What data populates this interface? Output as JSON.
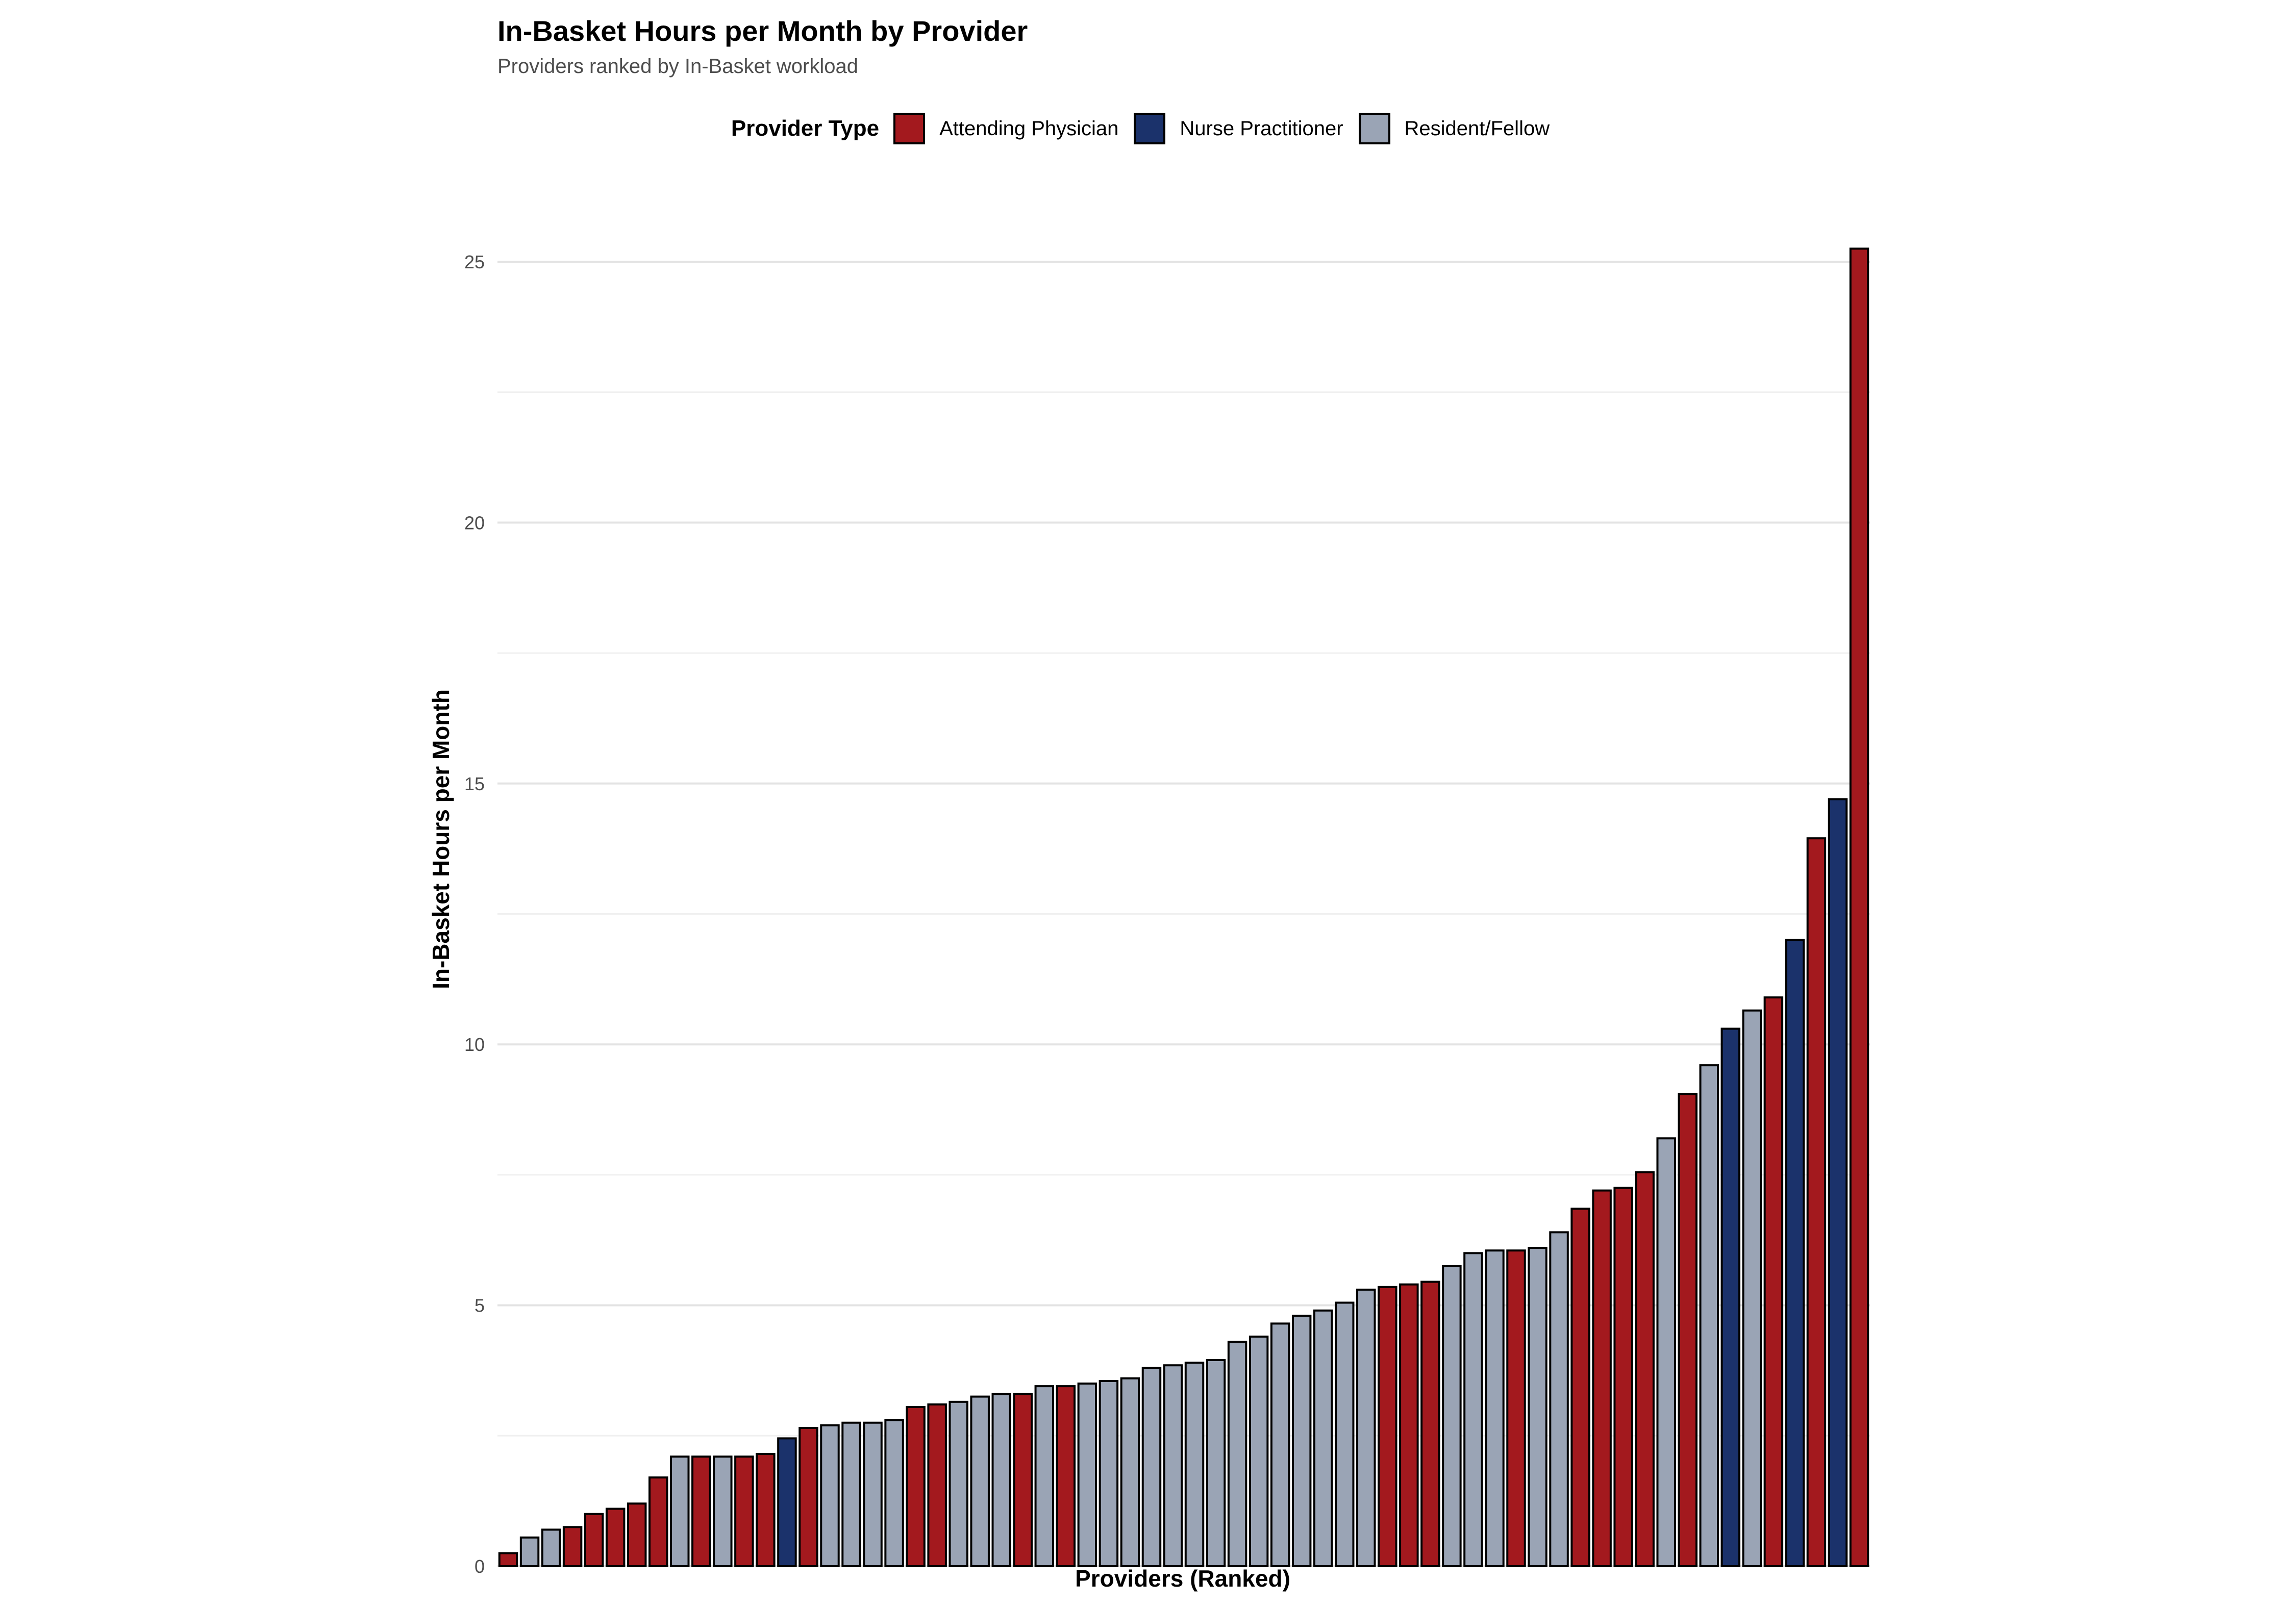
{
  "chart_data": {
    "type": "bar",
    "title": "In-Basket Hours per Month by Provider",
    "subtitle": "Providers ranked by In-Basket workload",
    "xlabel": "Providers (Ranked)",
    "ylabel": "In-Basket Hours per Month",
    "ylim": [
      0,
      25.3
    ],
    "yticks": [
      0,
      5,
      10,
      15,
      20,
      25
    ],
    "grid": true,
    "legend": {
      "title": "Provider Type",
      "placement": "top",
      "entries": [
        {
          "name": "Attending Physician",
          "color": "#A3191E"
        },
        {
          "name": "Nurse Practitioner",
          "color": "#1B326B"
        },
        {
          "name": "Resident/Fellow",
          "color": "#9AA4B5"
        }
      ]
    },
    "values": [
      0.25,
      0.55,
      0.7,
      0.75,
      1.0,
      1.1,
      1.2,
      1.7,
      2.1,
      2.1,
      2.1,
      2.1,
      2.15,
      2.45,
      2.65,
      2.7,
      2.75,
      2.75,
      2.8,
      3.05,
      3.1,
      3.15,
      3.25,
      3.3,
      3.3,
      3.45,
      3.45,
      3.5,
      3.55,
      3.6,
      3.8,
      3.85,
      3.9,
      3.95,
      4.3,
      4.4,
      4.65,
      4.8,
      4.9,
      5.05,
      5.3,
      5.35,
      5.4,
      5.45,
      5.75,
      6.0,
      6.05,
      6.05,
      6.1,
      6.4,
      6.85,
      7.2,
      7.25,
      7.55,
      8.2,
      9.05,
      9.6,
      10.3,
      10.65,
      10.9,
      12.0,
      13.95,
      14.7,
      25.25
    ],
    "types": [
      "Attending Physician",
      "Resident/Fellow",
      "Resident/Fellow",
      "Attending Physician",
      "Attending Physician",
      "Attending Physician",
      "Attending Physician",
      "Attending Physician",
      "Resident/Fellow",
      "Attending Physician",
      "Resident/Fellow",
      "Attending Physician",
      "Attending Physician",
      "Nurse Practitioner",
      "Attending Physician",
      "Resident/Fellow",
      "Resident/Fellow",
      "Resident/Fellow",
      "Resident/Fellow",
      "Attending Physician",
      "Attending Physician",
      "Resident/Fellow",
      "Resident/Fellow",
      "Resident/Fellow",
      "Attending Physician",
      "Resident/Fellow",
      "Attending Physician",
      "Resident/Fellow",
      "Resident/Fellow",
      "Resident/Fellow",
      "Resident/Fellow",
      "Resident/Fellow",
      "Resident/Fellow",
      "Resident/Fellow",
      "Resident/Fellow",
      "Resident/Fellow",
      "Resident/Fellow",
      "Resident/Fellow",
      "Resident/Fellow",
      "Resident/Fellow",
      "Resident/Fellow",
      "Attending Physician",
      "Attending Physician",
      "Attending Physician",
      "Resident/Fellow",
      "Resident/Fellow",
      "Resident/Fellow",
      "Attending Physician",
      "Resident/Fellow",
      "Resident/Fellow",
      "Attending Physician",
      "Attending Physician",
      "Attending Physician",
      "Attending Physician",
      "Resident/Fellow",
      "Attending Physician",
      "Resident/Fellow",
      "Nurse Practitioner",
      "Resident/Fellow",
      "Attending Physician",
      "Nurse Practitioner",
      "Attending Physician",
      "Nurse Practitioner",
      "Attending Physician"
    ]
  }
}
